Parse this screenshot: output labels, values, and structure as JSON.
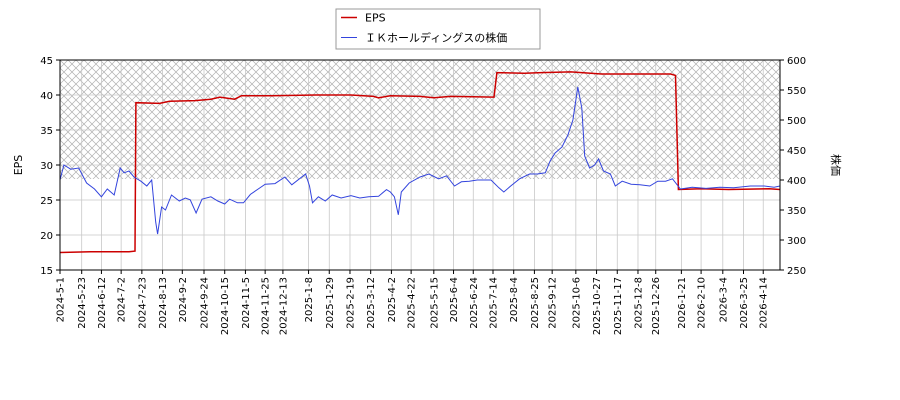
{
  "chart_data": {
    "type": "line",
    "legend": {
      "placement": "top-center",
      "entries": [
        "EPS",
        "ＩＫホールディングスの株価"
      ]
    },
    "left_axis": {
      "label": "EPS",
      "ylim": [
        15,
        45
      ],
      "ticks": [
        15,
        20,
        25,
        30,
        35,
        40,
        45
      ]
    },
    "right_axis": {
      "label": "株価",
      "ylim": [
        250,
        600
      ],
      "ticks": [
        250,
        300,
        350,
        400,
        450,
        500,
        550,
        600
      ]
    },
    "x_axis": {
      "start": "2024-05-01",
      "end": "2026-05-01",
      "tick_labels": [
        "2024-5-1",
        "2024-5-23",
        "2024-6-12",
        "2024-7-2",
        "2024-7-23",
        "2024-8-13",
        "2024-9-2",
        "2024-9-24",
        "2024-10-15",
        "2024-11-5",
        "2024-11-25",
        "2024-12-13",
        "2025-1-8",
        "2025-1-29",
        "2025-2-19",
        "2025-3-12",
        "2025-4-2",
        "2025-4-22",
        "2025-5-15",
        "2025-6-4",
        "2025-6-24",
        "2025-7-14",
        "2025-8-4",
        "2025-8-25",
        "2025-9-12",
        "2025-10-6",
        "2025-10-27",
        "2025-11-17",
        "2025-12-8",
        "2025-12-26",
        "2026-1-21",
        "2026-2-10",
        "2026-3-4",
        "2026-3-25",
        "2026-4-14"
      ]
    },
    "grid": true,
    "colors": {
      "eps": "#cc0000",
      "price": "#3344dd"
    },
    "hatched_region_eps_above": 28,
    "series": [
      {
        "name": "EPS",
        "axis": "left",
        "points": [
          [
            "2024-05-01",
            17.5
          ],
          [
            "2024-06-01",
            17.6
          ],
          [
            "2024-07-10",
            17.6
          ],
          [
            "2024-07-16",
            17.7
          ],
          [
            "2024-07-17",
            38.9
          ],
          [
            "2024-08-10",
            38.8
          ],
          [
            "2024-08-20",
            39.1
          ],
          [
            "2024-09-15",
            39.2
          ],
          [
            "2024-10-01",
            39.4
          ],
          [
            "2024-10-10",
            39.7
          ],
          [
            "2024-10-25",
            39.4
          ],
          [
            "2024-11-01",
            39.9
          ],
          [
            "2024-12-01",
            39.9
          ],
          [
            "2025-01-15",
            40.0
          ],
          [
            "2025-02-20",
            40.0
          ],
          [
            "2025-03-15",
            39.8
          ],
          [
            "2025-03-20",
            39.6
          ],
          [
            "2025-04-01",
            39.9
          ],
          [
            "2025-05-01",
            39.8
          ],
          [
            "2025-05-15",
            39.6
          ],
          [
            "2025-06-01",
            39.8
          ],
          [
            "2025-07-15",
            39.7
          ],
          [
            "2025-07-18",
            43.2
          ],
          [
            "2025-08-15",
            43.1
          ],
          [
            "2025-09-01",
            43.2
          ],
          [
            "2025-10-01",
            43.3
          ],
          [
            "2025-11-01",
            43.0
          ],
          [
            "2025-12-01",
            43.0
          ],
          [
            "2026-01-10",
            43.0
          ],
          [
            "2026-01-15",
            42.8
          ],
          [
            "2026-01-18",
            26.5
          ],
          [
            "2026-02-10",
            26.6
          ],
          [
            "2026-03-10",
            26.5
          ],
          [
            "2026-04-20",
            26.6
          ],
          [
            "2026-05-01",
            26.5
          ]
        ]
      },
      {
        "name": "ＩＫホールディングスの株価",
        "axis": "right",
        "points": [
          [
            "2024-05-01",
            400
          ],
          [
            "2024-05-05",
            425
          ],
          [
            "2024-05-12",
            418
          ],
          [
            "2024-05-20",
            420
          ],
          [
            "2024-05-28",
            395
          ],
          [
            "2024-06-05",
            385
          ],
          [
            "2024-06-12",
            372
          ],
          [
            "2024-06-18",
            385
          ],
          [
            "2024-06-25",
            375
          ],
          [
            "2024-07-01",
            420
          ],
          [
            "2024-07-05",
            412
          ],
          [
            "2024-07-10",
            415
          ],
          [
            "2024-07-15",
            405
          ],
          [
            "2024-07-22",
            398
          ],
          [
            "2024-07-28",
            390
          ],
          [
            "2024-08-02",
            400
          ],
          [
            "2024-08-06",
            330
          ],
          [
            "2024-08-08",
            310
          ],
          [
            "2024-08-12",
            355
          ],
          [
            "2024-08-16",
            350
          ],
          [
            "2024-08-22",
            375
          ],
          [
            "2024-08-30",
            365
          ],
          [
            "2024-09-05",
            370
          ],
          [
            "2024-09-10",
            367
          ],
          [
            "2024-09-16",
            345
          ],
          [
            "2024-09-22",
            368
          ],
          [
            "2024-10-01",
            372
          ],
          [
            "2024-10-08",
            365
          ],
          [
            "2024-10-15",
            360
          ],
          [
            "2024-10-20",
            368
          ],
          [
            "2024-10-28",
            362
          ],
          [
            "2024-11-03",
            362
          ],
          [
            "2024-11-10",
            376
          ],
          [
            "2024-11-18",
            385
          ],
          [
            "2024-11-25",
            393
          ],
          [
            "2024-12-05",
            394
          ],
          [
            "2024-12-15",
            405
          ],
          [
            "2024-12-22",
            392
          ],
          [
            "2025-01-05",
            410
          ],
          [
            "2025-01-09",
            390
          ],
          [
            "2025-01-12",
            362
          ],
          [
            "2025-01-18",
            372
          ],
          [
            "2025-01-25",
            365
          ],
          [
            "2025-02-01",
            375
          ],
          [
            "2025-02-10",
            370
          ],
          [
            "2025-02-20",
            374
          ],
          [
            "2025-03-01",
            370
          ],
          [
            "2025-03-10",
            372
          ],
          [
            "2025-03-20",
            373
          ],
          [
            "2025-03-28",
            384
          ],
          [
            "2025-04-01",
            380
          ],
          [
            "2025-04-05",
            372
          ],
          [
            "2025-04-09",
            342
          ],
          [
            "2025-04-12",
            380
          ],
          [
            "2025-04-20",
            395
          ],
          [
            "2025-05-01",
            405
          ],
          [
            "2025-05-10",
            410
          ],
          [
            "2025-05-20",
            402
          ],
          [
            "2025-05-28",
            407
          ],
          [
            "2025-06-05",
            390
          ],
          [
            "2025-06-12",
            397
          ],
          [
            "2025-06-20",
            398
          ],
          [
            "2025-06-28",
            400
          ],
          [
            "2025-07-05",
            400
          ],
          [
            "2025-07-12",
            400
          ],
          [
            "2025-07-20",
            387
          ],
          [
            "2025-07-25",
            380
          ],
          [
            "2025-08-01",
            390
          ],
          [
            "2025-08-10",
            402
          ],
          [
            "2025-08-20",
            410
          ],
          [
            "2025-08-28",
            410
          ],
          [
            "2025-09-05",
            412
          ],
          [
            "2025-09-10",
            432
          ],
          [
            "2025-09-15",
            445
          ],
          [
            "2025-09-22",
            455
          ],
          [
            "2025-09-28",
            475
          ],
          [
            "2025-10-03",
            500
          ],
          [
            "2025-10-08",
            555
          ],
          [
            "2025-10-12",
            520
          ],
          [
            "2025-10-15",
            440
          ],
          [
            "2025-10-20",
            420
          ],
          [
            "2025-10-25",
            425
          ],
          [
            "2025-10-29",
            435
          ],
          [
            "2025-11-03",
            415
          ],
          [
            "2025-11-10",
            410
          ],
          [
            "2025-11-15",
            390
          ],
          [
            "2025-11-22",
            398
          ],
          [
            "2025-12-01",
            393
          ],
          [
            "2025-12-10",
            392
          ],
          [
            "2025-12-20",
            390
          ],
          [
            "2025-12-28",
            398
          ],
          [
            "2026-01-05",
            398
          ],
          [
            "2026-01-12",
            402
          ],
          [
            "2026-01-20",
            385
          ],
          [
            "2026-02-01",
            388
          ],
          [
            "2026-02-15",
            386
          ],
          [
            "2026-03-01",
            388
          ],
          [
            "2026-03-15",
            387
          ],
          [
            "2026-04-01",
            390
          ],
          [
            "2026-04-15",
            390
          ],
          [
            "2026-04-25",
            388
          ],
          [
            "2026-05-01",
            390
          ]
        ]
      }
    ]
  }
}
